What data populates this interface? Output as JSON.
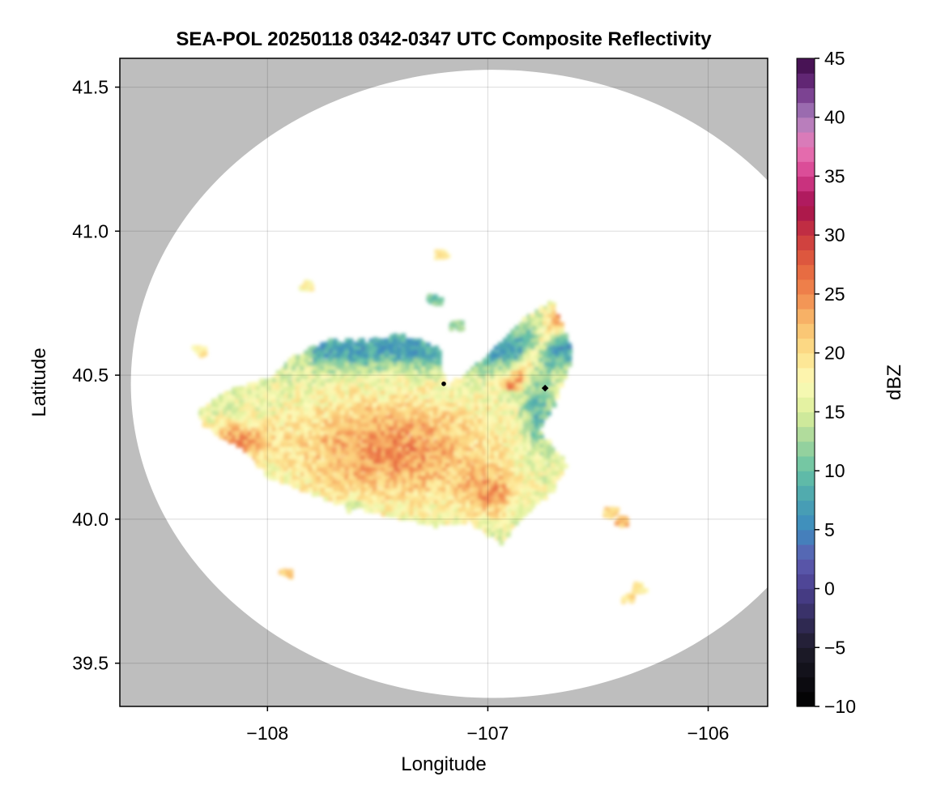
{
  "chart_data": {
    "type": "heatmap",
    "title": "SEA-POL 20250118 0342-0347 UTC Composite Reflectivity",
    "xlabel": "Longitude",
    "ylabel": "Latitude",
    "xlim": [
      -108.67,
      -105.73
    ],
    "ylim": [
      39.35,
      41.6
    ],
    "xticks": [
      -108,
      -107,
      -106
    ],
    "xtick_labels": [
      "−108",
      "−107",
      "−106"
    ],
    "yticks": [
      39.5,
      40.0,
      40.5,
      41.0,
      41.5
    ],
    "ytick_labels": [
      "39.5",
      "40.0",
      "40.5",
      "41.0",
      "41.5"
    ],
    "grid": true,
    "background_color": "#bebebe",
    "radar_coverage": {
      "center": [
        -106.98,
        40.47
      ],
      "lat_extent": [
        39.38,
        41.56
      ],
      "lon_extent": [
        -108.62,
        -105.34
      ],
      "fill_color": "#ffffff"
    },
    "markers": [
      {
        "name": "radar site",
        "lon": -107.2,
        "lat": 40.47,
        "symbol": "dot"
      },
      {
        "name": "point",
        "lon": -106.74,
        "lat": 40.455,
        "symbol": "diamond"
      }
    ],
    "colorbar": {
      "label": "dBZ",
      "min": -10,
      "max": 45,
      "ticks": [
        -10,
        -5,
        0,
        5,
        10,
        15,
        20,
        25,
        30,
        35,
        40,
        45
      ],
      "tick_labels": [
        "−10",
        "−5",
        "0",
        "5",
        "10",
        "15",
        "20",
        "25",
        "30",
        "35",
        "40",
        "45"
      ],
      "colormap": "Spectral (reversed) with magenta/purple extension",
      "colors": [
        {
          "v": -10,
          "c": "#000000"
        },
        {
          "v": -5,
          "c": "#1f1c2b"
        },
        {
          "v": 0,
          "c": "#4a3f8f"
        },
        {
          "v": 2.5,
          "c": "#5d5cb0"
        },
        {
          "v": 5,
          "c": "#3d8abf"
        },
        {
          "v": 7.5,
          "c": "#4aa3b1"
        },
        {
          "v": 10,
          "c": "#66c2a5"
        },
        {
          "v": 12.5,
          "c": "#a2d69c"
        },
        {
          "v": 15,
          "c": "#dcef9a"
        },
        {
          "v": 17.5,
          "c": "#fdfbb8"
        },
        {
          "v": 20,
          "c": "#fde08b"
        },
        {
          "v": 22.5,
          "c": "#f9be6e"
        },
        {
          "v": 25,
          "c": "#f1894e"
        },
        {
          "v": 27.5,
          "c": "#e4623e"
        },
        {
          "v": 30,
          "c": "#c9373f"
        },
        {
          "v": 32.5,
          "c": "#a30f4f"
        },
        {
          "v": 35,
          "c": "#d63e8e"
        },
        {
          "v": 37.5,
          "c": "#e97ab7"
        },
        {
          "v": 40,
          "c": "#a97fbd"
        },
        {
          "v": 42.5,
          "c": "#6d2f83"
        },
        {
          "v": 45,
          "c": "#3b0a45"
        }
      ]
    },
    "echoes": [
      {
        "region": "main stratiform area west of radar",
        "lon": [
          -108.35,
          -106.55
        ],
        "lat": [
          39.9,
          40.68
        ],
        "dbz_range": [
          10,
          30
        ]
      },
      {
        "region": "northern fringe",
        "lon": [
          -107.95,
          -107.15
        ],
        "lat": [
          40.45,
          40.65
        ],
        "dbz_range": [
          5,
          15
        ]
      },
      {
        "region": "northeast sector band",
        "lon": [
          -107.0,
          -106.62
        ],
        "lat": [
          40.3,
          40.76
        ],
        "dbz_range": [
          5,
          30
        ]
      },
      {
        "region": "isolated cell northeast",
        "lon": [
          -106.45,
          -106.2
        ],
        "lat": [
          39.65,
          39.8
        ],
        "dbz_range": [
          18,
          22
        ]
      }
    ]
  }
}
